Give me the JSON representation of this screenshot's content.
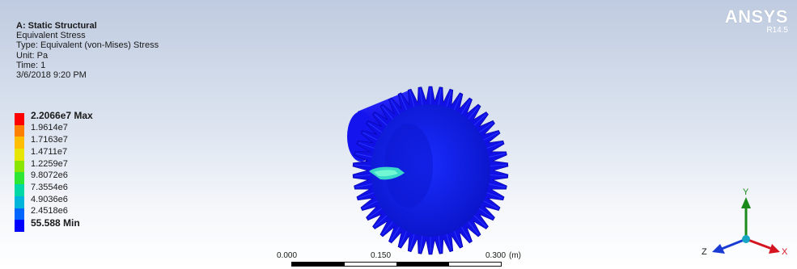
{
  "info": {
    "title": "A: Static Structural",
    "result": "Equivalent Stress",
    "type": "Type: Equivalent (von-Mises) Stress",
    "unit": "Unit: Pa",
    "time": "Time: 1",
    "date": "3/6/2018 9:20 PM"
  },
  "legend": {
    "labels": [
      "2.2066e7 Max",
      "1.9614e7",
      "1.7163e7",
      "1.4711e7",
      "1.2259e7",
      "9.8072e6",
      "7.3554e6",
      "4.9036e6",
      "2.4518e6",
      "55.588 Min"
    ],
    "colors": [
      "#ff0000",
      "#ff7f00",
      "#ffbf00",
      "#e6e600",
      "#8ae600",
      "#2ee634",
      "#00d9a6",
      "#00b5d9",
      "#0066ff",
      "#0000ff"
    ]
  },
  "brand": {
    "name": "ANSYS",
    "version": "R14.5"
  },
  "scale": {
    "labels": [
      "0.000",
      "0.150",
      "0.300"
    ],
    "unit": "(m)"
  },
  "triad": {
    "x": "X",
    "y": "Y",
    "z": "Z",
    "colors": {
      "x": "#d4141e",
      "y": "#1a8a1a",
      "z": "#1a3ad4",
      "center": "#17a5c4"
    }
  },
  "model": {
    "colors": {
      "body": "#1111e6",
      "dark": "#0808a0",
      "face": "#0a1fd8",
      "stress": "#3ad8c8"
    }
  }
}
